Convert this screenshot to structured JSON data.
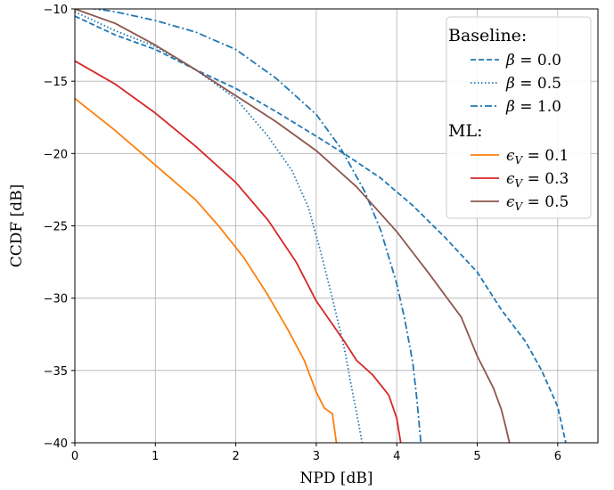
{
  "chart_data": {
    "type": "line",
    "title": "",
    "xlabel": "NPD [dB]",
    "ylabel": "CCDF [dB]",
    "xlim": [
      0,
      6.5
    ],
    "ylim": [
      -40,
      -10
    ],
    "xticks": [
      0,
      1,
      2,
      3,
      4,
      5,
      6
    ],
    "xtick_labels": [
      "0",
      "1",
      "2",
      "3",
      "4",
      "5",
      "6"
    ],
    "yticks": [
      -40,
      -35,
      -30,
      -25,
      -20,
      -15,
      -10
    ],
    "ytick_labels": [
      "−40",
      "−35",
      "−30",
      "−25",
      "−20",
      "−15",
      "−10"
    ],
    "grid": true,
    "legend_placement": "top-right",
    "legend_groups": [
      {
        "header": "Baseline:",
        "entries": [
          0,
          1,
          2
        ]
      },
      {
        "header": "ML:",
        "entries": [
          3,
          4,
          5
        ]
      }
    ],
    "series": [
      {
        "name": "β = 0.0",
        "var": "β",
        "val": "0.0",
        "color": "#1f77b4",
        "dash": "dashed",
        "x": [
          0,
          0.5,
          1.0,
          1.5,
          2.0,
          2.5,
          3.0,
          3.4,
          3.8,
          4.2,
          4.6,
          5.0,
          5.3,
          5.6,
          5.8,
          6.0,
          6.1
        ],
        "y": [
          -10.5,
          -11.8,
          -12.8,
          -14.2,
          -15.5,
          -17.1,
          -18.8,
          -20.2,
          -21.7,
          -23.6,
          -25.8,
          -28.2,
          -30.8,
          -33.0,
          -35.0,
          -37.5,
          -40.0
        ]
      },
      {
        "name": "β = 0.5",
        "var": "β",
        "val": "0.5",
        "color": "#1f77b4",
        "dash": "dotted",
        "x": [
          0,
          0.5,
          1.0,
          1.5,
          2.0,
          2.4,
          2.7,
          2.9,
          3.05,
          3.2,
          3.35,
          3.45,
          3.52,
          3.57
        ],
        "y": [
          -10.2,
          -11.5,
          -12.6,
          -14.2,
          -16.2,
          -18.8,
          -21.2,
          -23.7,
          -26.7,
          -30.0,
          -33.5,
          -36.5,
          -38.5,
          -40.0
        ]
      },
      {
        "name": "β = 1.0",
        "var": "β",
        "val": "1.0",
        "color": "#1f77b4",
        "dash": "dashdot",
        "x": [
          0,
          0.5,
          1.0,
          1.5,
          2.0,
          2.5,
          3.0,
          3.3,
          3.6,
          3.8,
          4.0,
          4.1,
          4.2,
          4.25,
          4.3
        ],
        "y": [
          -9.8,
          -10.2,
          -10.8,
          -11.6,
          -12.8,
          -14.8,
          -17.3,
          -19.6,
          -22.6,
          -25.3,
          -29.0,
          -31.5,
          -34.5,
          -37.0,
          -40.0
        ]
      },
      {
        "name": "ϵV = 0.1",
        "var": "ϵ",
        "sub": "V",
        "val": "0.1",
        "color": "#ff7f0e",
        "dash": "solid",
        "x": [
          0,
          0.5,
          1.0,
          1.5,
          1.8,
          2.1,
          2.4,
          2.65,
          2.85,
          3.0,
          3.1,
          3.2,
          3.25
        ],
        "y": [
          -16.2,
          -18.4,
          -20.8,
          -23.2,
          -25.1,
          -27.2,
          -29.8,
          -32.2,
          -34.3,
          -36.5,
          -37.6,
          -38.0,
          -40.0
        ]
      },
      {
        "name": "ϵV = 0.3",
        "var": "ϵ",
        "sub": "V",
        "val": "0.3",
        "color": "#d62728",
        "dash": "solid",
        "x": [
          0,
          0.5,
          1.0,
          1.5,
          2.0,
          2.4,
          2.75,
          3.0,
          3.2,
          3.35,
          3.5,
          3.7,
          3.9,
          4.0,
          4.05
        ],
        "y": [
          -13.6,
          -15.2,
          -17.2,
          -19.5,
          -22.0,
          -24.6,
          -27.5,
          -30.2,
          -31.8,
          -33.0,
          -34.3,
          -35.3,
          -36.7,
          -38.3,
          -40.0
        ]
      },
      {
        "name": "ϵV = 0.5",
        "var": "ϵ",
        "sub": "V",
        "val": "0.5",
        "color": "#8c564b",
        "dash": "solid",
        "x": [
          0,
          0.5,
          1.0,
          1.5,
          2.0,
          2.5,
          3.0,
          3.5,
          4.0,
          4.4,
          4.8,
          5.0,
          5.2,
          5.3,
          5.35,
          5.4
        ],
        "y": [
          -10.0,
          -11.0,
          -12.5,
          -14.2,
          -16.0,
          -17.8,
          -19.8,
          -22.3,
          -25.4,
          -28.3,
          -31.3,
          -34.0,
          -36.2,
          -37.7,
          -38.8,
          -40.0
        ]
      }
    ]
  }
}
